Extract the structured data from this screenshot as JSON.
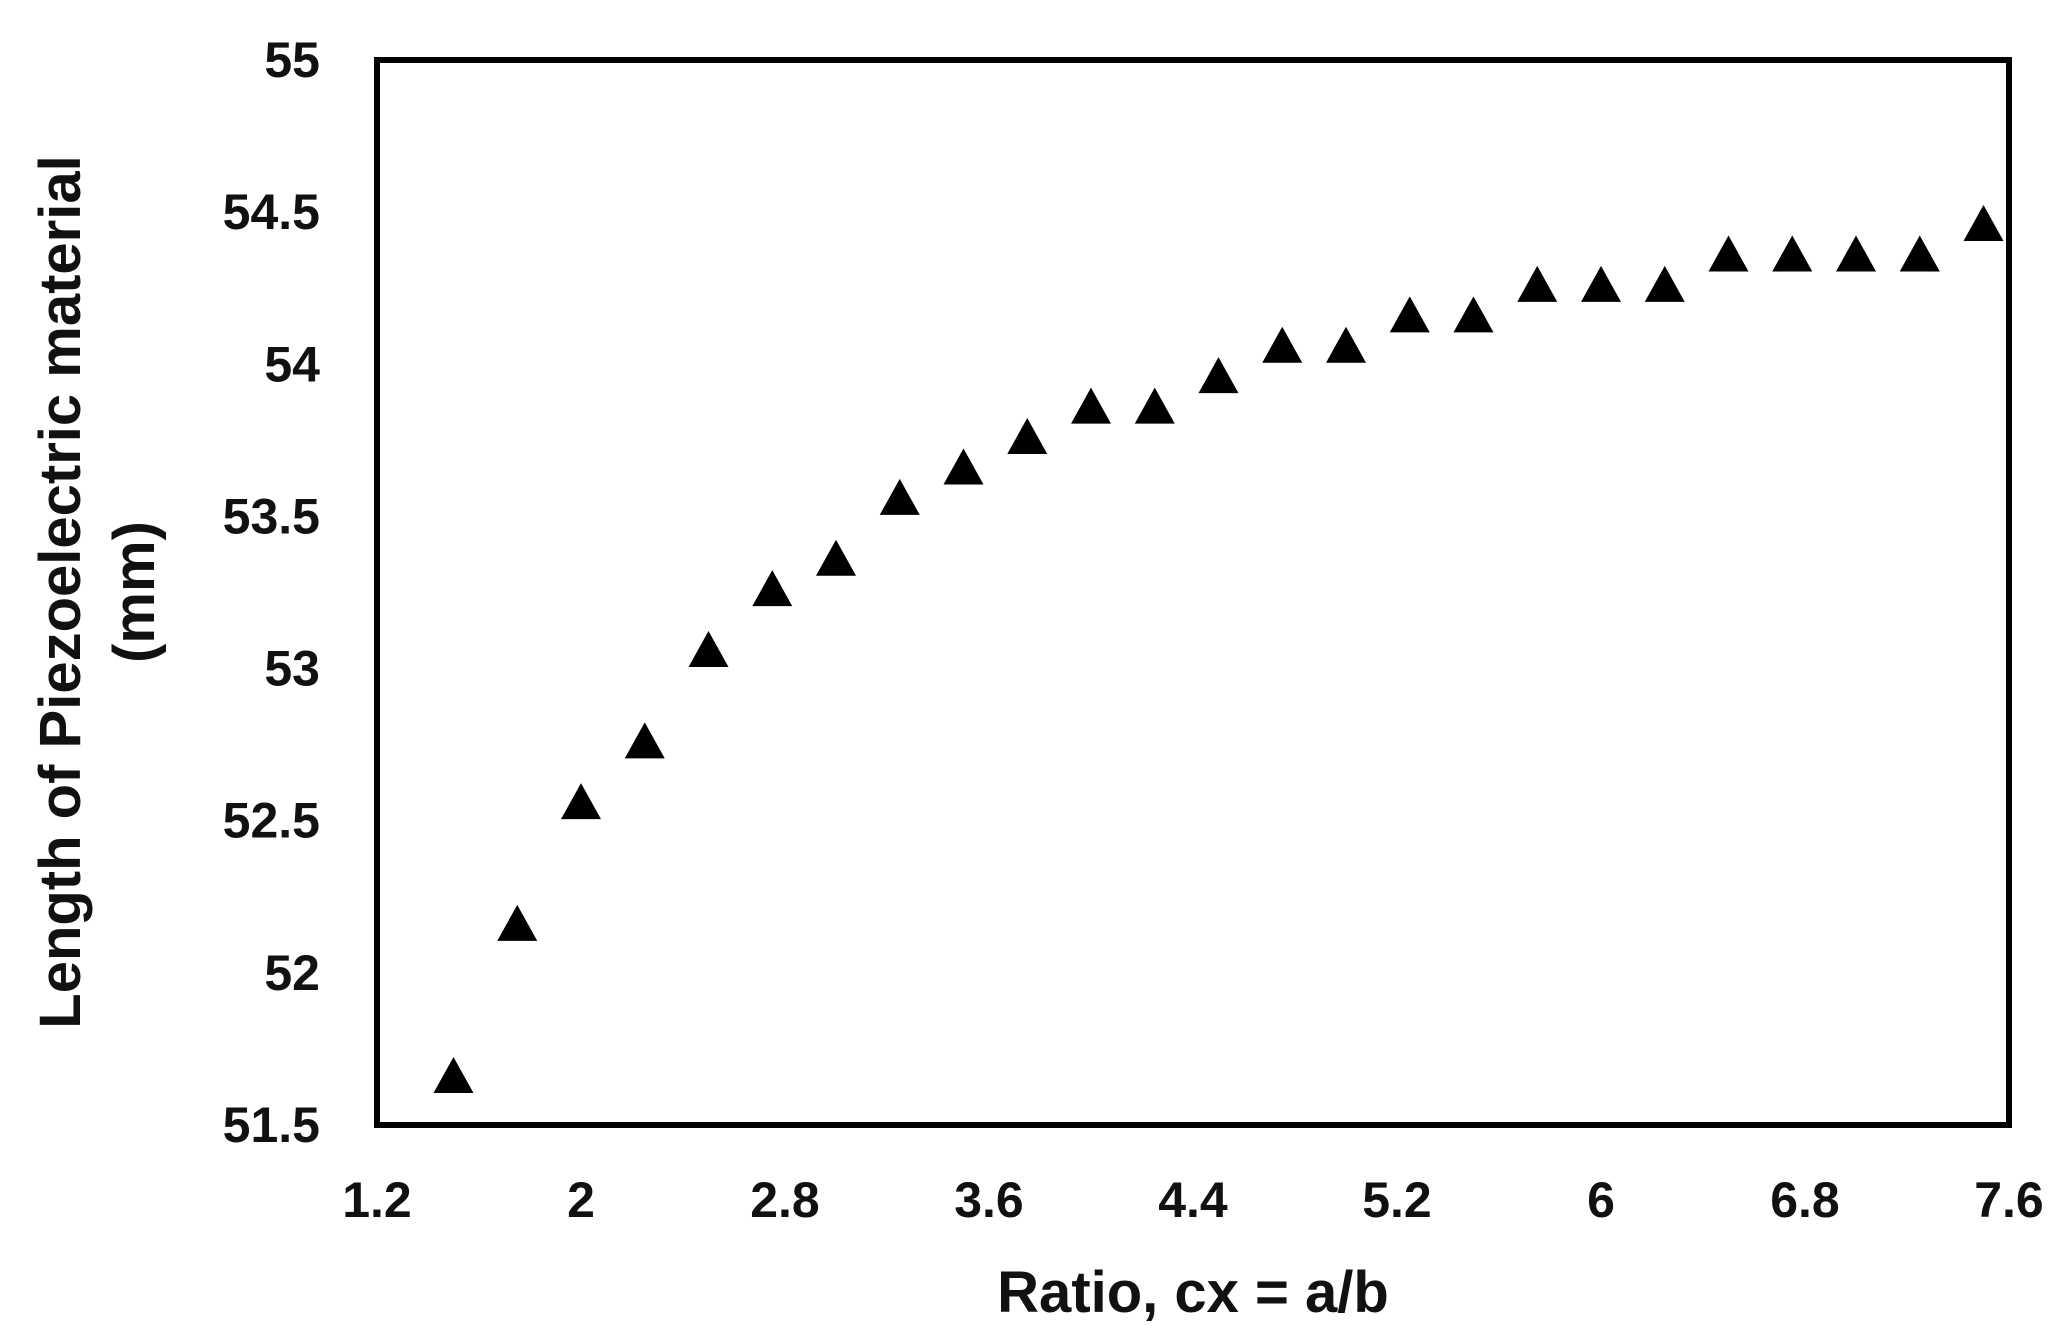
{
  "chart_data": {
    "type": "scatter",
    "title": "",
    "xlabel": "Ratio, cx = a/b",
    "ylabel_lines": [
      "Length of Piezoelectric material",
      "(mm)"
    ],
    "xlim": [
      1.2,
      7.6
    ],
    "ylim": [
      51.5,
      55
    ],
    "xticks": [
      "1.2",
      "2",
      "2.8",
      "3.6",
      "4.4",
      "5.2",
      "6",
      "6.8",
      "7.6"
    ],
    "yticks": [
      "51.5",
      "52",
      "52.5",
      "53",
      "53.5",
      "54",
      "54.5",
      "55"
    ],
    "grid": false,
    "legend": "none",
    "marker": "filled-triangle",
    "marker_color": "#000000",
    "series": [
      {
        "x": [
          1.5,
          1.75,
          2.0,
          2.25,
          2.5,
          2.75,
          3.0,
          3.25,
          3.5,
          3.75,
          4.0,
          4.25,
          4.5,
          4.75,
          5.0,
          5.25,
          5.5,
          5.75,
          6.0,
          6.25,
          6.5,
          6.75,
          7.0,
          7.25,
          7.5
        ],
        "y": [
          51.65,
          52.15,
          52.55,
          52.75,
          53.05,
          53.25,
          53.35,
          53.55,
          53.65,
          53.75,
          53.85,
          53.85,
          53.95,
          54.05,
          54.05,
          54.15,
          54.15,
          54.25,
          54.25,
          54.25,
          54.35,
          54.35,
          54.35,
          54.35,
          54.45
        ]
      }
    ]
  }
}
